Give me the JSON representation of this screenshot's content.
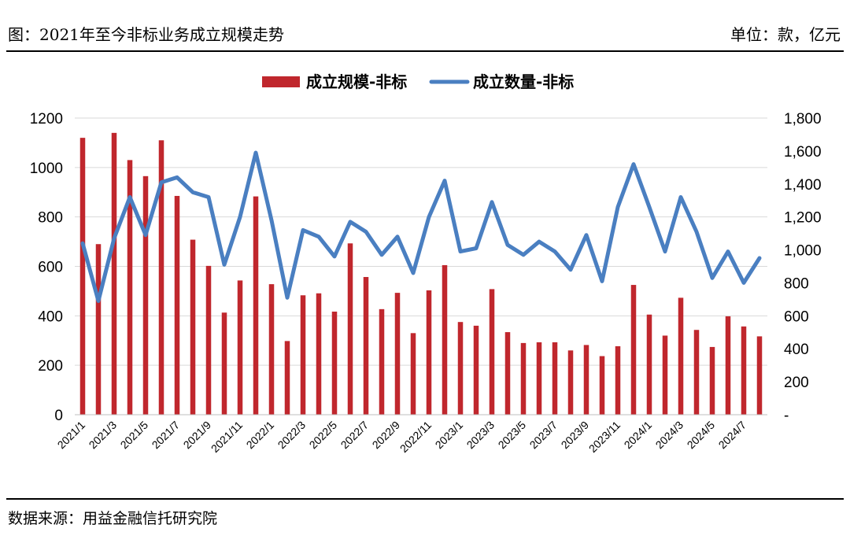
{
  "header": {
    "title": "图：2021年至今非标业务成立规模走势",
    "unit": "单位：款，亿元"
  },
  "footer": {
    "source": "数据来源：用益金融信托研究院"
  },
  "chart_data": {
    "type": "bar+line",
    "categories": [
      "2021/1",
      "2021/2",
      "2021/3",
      "2021/4",
      "2021/5",
      "2021/6",
      "2021/7",
      "2021/8",
      "2021/9",
      "2021/10",
      "2021/11",
      "2021/12",
      "2022/1",
      "2022/2",
      "2022/3",
      "2022/4",
      "2022/5",
      "2022/6",
      "2022/7",
      "2022/8",
      "2022/9",
      "2022/10",
      "2022/11",
      "2022/12",
      "2023/1",
      "2023/2",
      "2023/3",
      "2023/4",
      "2023/5",
      "2023/6",
      "2023/7",
      "2023/8",
      "2023/9",
      "2023/10",
      "2023/11",
      "2023/12",
      "2024/1",
      "2024/2",
      "2024/3",
      "2024/4",
      "2024/5",
      "2024/6",
      "2024/7",
      "2024/8"
    ],
    "x_tick_labels": [
      "2021/1",
      "2021/3",
      "2021/5",
      "2021/7",
      "2021/9",
      "2021/11",
      "2022/1",
      "2022/3",
      "2022/5",
      "2022/7",
      "2022/9",
      "2022/11",
      "2023/1",
      "2023/3",
      "2023/5",
      "2023/7",
      "2023/9",
      "2023/11",
      "2024/1",
      "2024/3",
      "2024/5",
      "2024/7"
    ],
    "series": [
      {
        "name": "成立规模-非标",
        "type": "bar",
        "axis": "left",
        "color": "#c0272d",
        "values": [
          1120,
          690,
          1140,
          1030,
          965,
          1110,
          885,
          708,
          602,
          413,
          543,
          883,
          528,
          298,
          483,
          491,
          417,
          693,
          557,
          427,
          493,
          330,
          503,
          605,
          375,
          360,
          508,
          334,
          290,
          293,
          293,
          260,
          282,
          237,
          277,
          525,
          405,
          320,
          473,
          343,
          274,
          398,
          357,
          317
        ]
      },
      {
        "name": "成立数量-非标",
        "type": "line",
        "axis": "right",
        "color": "#4a7fc1",
        "values": [
          1040,
          690,
          1070,
          1320,
          1090,
          1410,
          1440,
          1350,
          1320,
          910,
          1200,
          1590,
          1180,
          710,
          1120,
          1080,
          960,
          1170,
          1110,
          970,
          1080,
          860,
          1200,
          1420,
          990,
          1010,
          1290,
          1030,
          970,
          1050,
          990,
          880,
          1090,
          810,
          1260,
          1520,
          1260,
          990,
          1320,
          1110,
          830,
          990,
          800,
          950
        ]
      }
    ],
    "y_left": {
      "lim": [
        0,
        1200
      ],
      "ticks": [
        "0",
        "200",
        "400",
        "600",
        "800",
        "1000",
        "1200"
      ]
    },
    "y_right": {
      "lim": [
        0,
        1800
      ],
      "ticks": [
        "-",
        "200",
        "400",
        "600",
        "800",
        "1,000",
        "1,200",
        "1,400",
        "1,600",
        "1,800"
      ]
    },
    "grid": true,
    "legend": "top-center"
  }
}
